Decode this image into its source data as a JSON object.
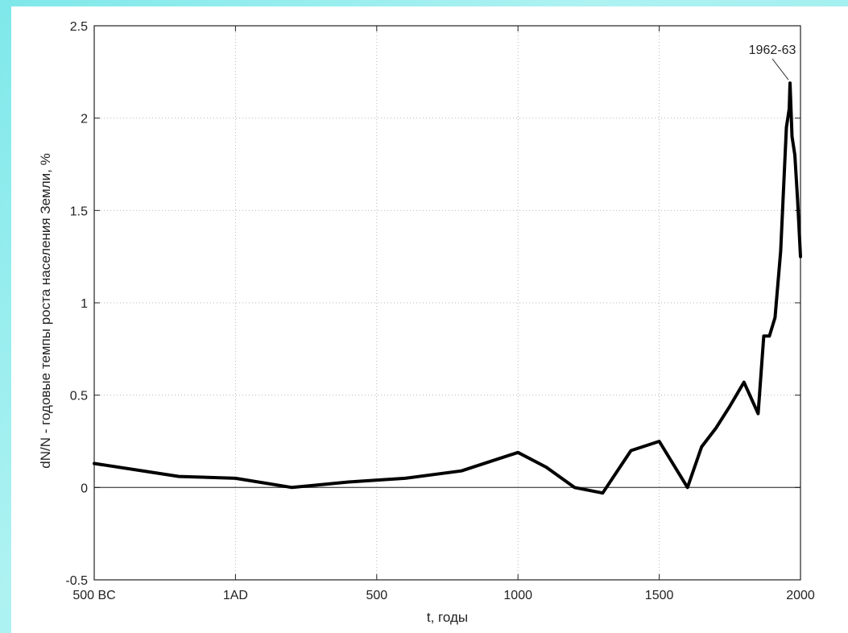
{
  "chart_data": {
    "type": "line",
    "xlabel": "t, годы",
    "ylabel": "dN/N - годовые темпы роста населения Земли, %",
    "xlim": [
      -500,
      2000
    ],
    "ylim": [
      -0.5,
      2.5
    ],
    "xticks": [
      {
        "value": -500,
        "label": "500 BC"
      },
      {
        "value": 0,
        "label": "1AD"
      },
      {
        "value": 500,
        "label": "500"
      },
      {
        "value": 1000,
        "label": "1000"
      },
      {
        "value": 1500,
        "label": "1500"
      },
      {
        "value": 2000,
        "label": "2000"
      }
    ],
    "yticks": [
      {
        "value": -0.5,
        "label": "-0.5"
      },
      {
        "value": 0,
        "label": "0"
      },
      {
        "value": 0.5,
        "label": "0.5"
      },
      {
        "value": 1,
        "label": "1"
      },
      {
        "value": 1.5,
        "label": "1.5"
      },
      {
        "value": 2,
        "label": "2"
      },
      {
        "value": 2.5,
        "label": "2.5"
      }
    ],
    "grid": true,
    "series": [
      {
        "x": [
          -500,
          -200,
          0,
          200,
          400,
          600,
          800,
          1000,
          1100,
          1200,
          1300,
          1400,
          1500,
          1600,
          1650,
          1700,
          1750,
          1800,
          1850,
          1870,
          1890,
          1910,
          1930,
          1950,
          1960,
          1963,
          1970,
          1980,
          1990,
          2000
        ],
        "y": [
          0.13,
          0.06,
          0.05,
          0.0,
          0.03,
          0.05,
          0.09,
          0.19,
          0.11,
          0.0,
          -0.03,
          0.2,
          0.25,
          0.0,
          0.22,
          0.32,
          0.44,
          0.57,
          0.4,
          0.82,
          0.82,
          0.92,
          1.28,
          1.95,
          2.05,
          2.19,
          1.9,
          1.8,
          1.55,
          1.25
        ]
      }
    ],
    "annotations": [
      {
        "text": "1962-63",
        "x": 1963,
        "y": 2.19
      }
    ]
  }
}
